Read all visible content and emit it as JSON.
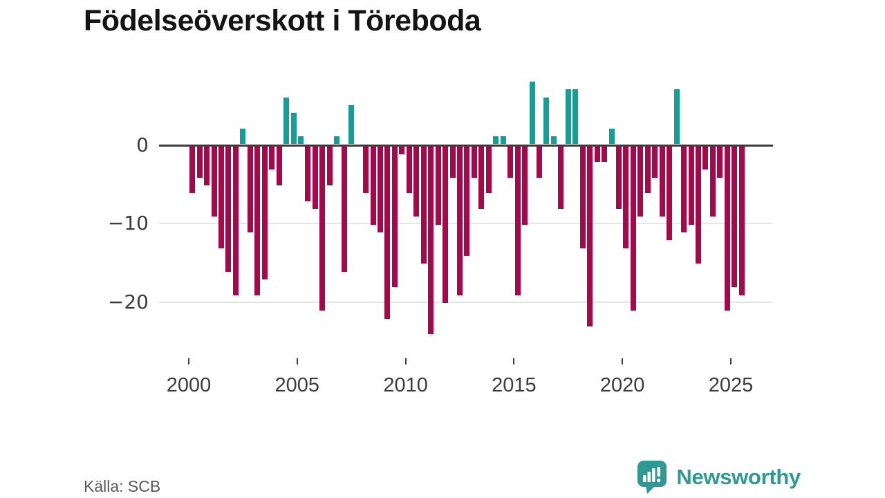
{
  "title": "Födelseöverskott i Töreboda",
  "source": "Källa: SCB",
  "logo": {
    "text": "Newsworthy"
  },
  "colors": {
    "positive": "#169e96",
    "negative": "#a20a4a",
    "zero_line": "#3d3d3d",
    "gridline": "#e4e4e4",
    "axis_text": "#3c3c3c",
    "title_text": "#141414",
    "source_text": "#5a5a5a",
    "logo_teal": "#2f9a93"
  },
  "chart_data": {
    "type": "bar",
    "title": "Födelseöverskott i Töreboda",
    "xlabel": "",
    "ylabel": "",
    "start_year": 2000,
    "points_per_year": 3,
    "x_tick_labels": [
      "2000",
      "2005",
      "2010",
      "2015",
      "2020",
      "2025"
    ],
    "y_ticks": [
      0,
      -10,
      -20
    ],
    "y_tick_labels": [
      "0",
      "−10",
      "−20"
    ],
    "ylim": [
      -26,
      9
    ],
    "grid": "horizontal",
    "legend": "none",
    "values": [
      -6,
      -4,
      -5,
      -9,
      -13,
      -16,
      -19,
      2,
      -11,
      -19,
      -17,
      -3,
      -5,
      6,
      4,
      1,
      -7,
      -8,
      -21,
      -5,
      1,
      -16,
      5,
      0,
      -6,
      -10,
      -11,
      -22,
      -18,
      -1,
      -6,
      -9,
      -15,
      -24,
      -10,
      -20,
      -4,
      -19,
      -14,
      -4,
      -8,
      -6,
      1,
      1,
      -4,
      -19,
      -10,
      8,
      -4,
      6,
      1,
      -8,
      7,
      7,
      -13,
      -23,
      -2,
      -2,
      2,
      -8,
      -13,
      -21,
      -9,
      -6,
      -4,
      -9,
      -12,
      7,
      -11,
      -10,
      -15,
      -3,
      -9,
      -4,
      -21,
      -18,
      -19
    ]
  }
}
